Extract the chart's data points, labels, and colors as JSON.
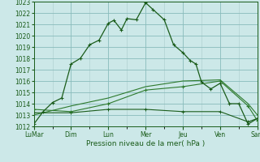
{
  "xlabel": "Pression niveau de la mer( hPa )",
  "bg_color": "#cce8e8",
  "grid_color_major": "#88bbbb",
  "grid_color_minor": "#aacccc",
  "line_dark": "#1a5c1a",
  "line_mid": "#2d7a2d",
  "ylim": [
    1012,
    1023
  ],
  "yticks": [
    1012,
    1013,
    1014,
    1015,
    1016,
    1017,
    1018,
    1019,
    1020,
    1021,
    1022,
    1023
  ],
  "xtick_labels": [
    "LuMar",
    "Dim",
    "Lun",
    "Mer",
    "Jeu",
    "Ven",
    "Sam"
  ],
  "xtick_positions": [
    0,
    2,
    4,
    6,
    8,
    10,
    12
  ],
  "s1_x": [
    0,
    0.5,
    1,
    1.5,
    2,
    2.5,
    3,
    3.5,
    4,
    4.3,
    4.7,
    5,
    5.5,
    6,
    6.4,
    7,
    7.5,
    8,
    8.4,
    8.7,
    9,
    9.5,
    10,
    10.5,
    11,
    11.5,
    12
  ],
  "s1_y": [
    1012.2,
    1013.3,
    1014.1,
    1014.5,
    1017.5,
    1018.0,
    1019.2,
    1019.6,
    1021.1,
    1021.35,
    1020.5,
    1021.5,
    1021.4,
    1022.9,
    1022.3,
    1021.4,
    1019.2,
    1018.5,
    1017.8,
    1017.5,
    1015.9,
    1015.3,
    1015.8,
    1014.0,
    1014.0,
    1012.2,
    1012.7
  ],
  "s2_x": [
    0,
    2,
    4,
    6,
    8,
    10,
    11.5,
    12
  ],
  "s2_y": [
    1013.5,
    1013.3,
    1014.0,
    1015.2,
    1015.5,
    1016.0,
    1013.8,
    1012.5
  ],
  "s3_x": [
    0,
    2,
    4,
    6,
    8,
    10,
    11.5,
    12
  ],
  "s3_y": [
    1013.2,
    1013.2,
    1013.5,
    1013.5,
    1013.3,
    1013.3,
    1012.4,
    1012.7
  ],
  "s4_x": [
    0,
    2,
    4,
    6,
    8,
    10,
    11.5,
    12
  ],
  "s4_y": [
    1013.0,
    1013.8,
    1014.5,
    1015.5,
    1016.0,
    1016.1,
    1014.0,
    1013.0
  ]
}
